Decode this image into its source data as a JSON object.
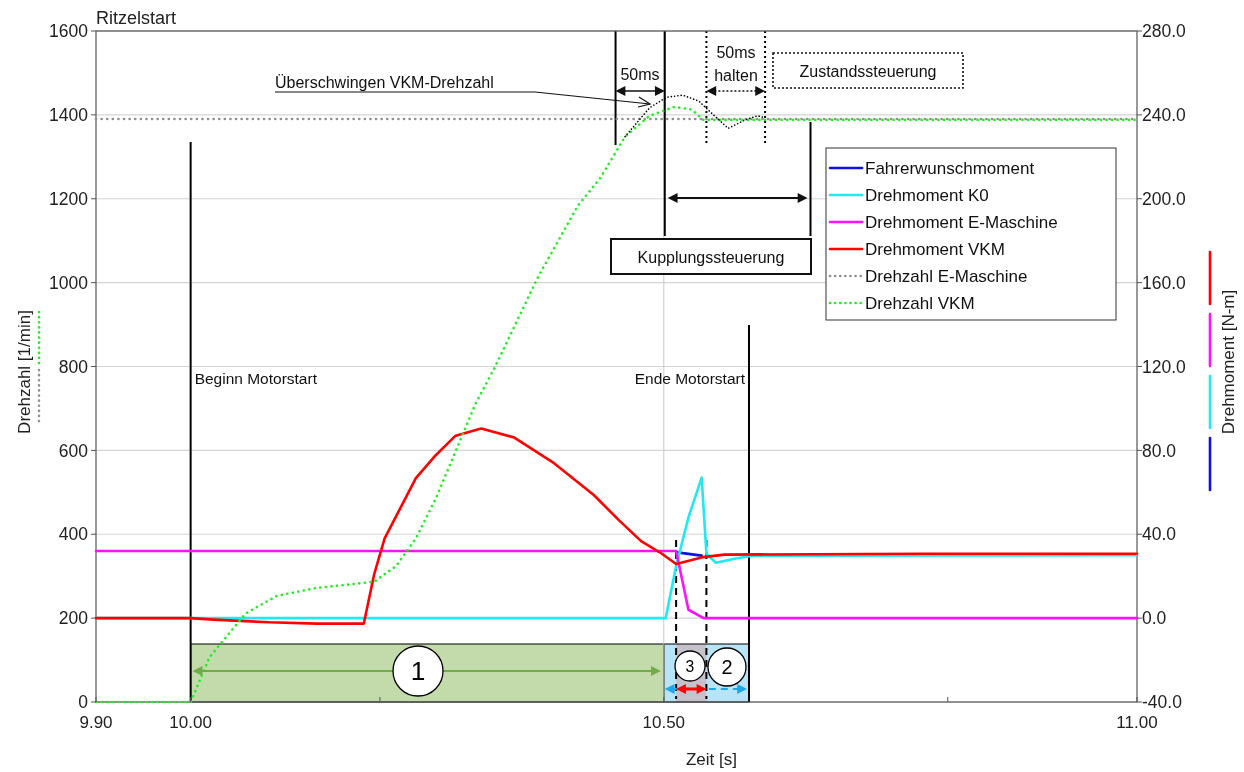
{
  "chart_data": {
    "type": "line",
    "title": "Ritzelstart",
    "xlabel": "Zeit [s]",
    "ylabel": "Drehzahl [1/min]",
    "y2label": "Drehmoment [N-m]",
    "xlim": [
      9.9,
      11.0
    ],
    "xticks": [
      {
        "value": 9.9,
        "label": "9.90"
      },
      {
        "value": 10.0,
        "label": "10.00"
      },
      {
        "value": 10.2,
        "label": null
      },
      {
        "value": 10.5,
        "label": "10.50"
      },
      {
        "value": 10.8,
        "label": null
      },
      {
        "value": 11.0,
        "label": "11.00"
      }
    ],
    "ylim": [
      0,
      1600
    ],
    "yticks": [
      0,
      200,
      400,
      600,
      800,
      1000,
      1200,
      1400,
      1600
    ],
    "y2lim": [
      -40,
      280
    ],
    "y2ticks": [
      {
        "value": -40,
        "label": "-40.0"
      },
      {
        "value": 0,
        "label": "0.0"
      },
      {
        "value": 40,
        "label": "40.0"
      },
      {
        "value": 80,
        "label": "80.0"
      },
      {
        "value": 120,
        "label": "120.0"
      },
      {
        "value": 160,
        "label": "160.0"
      },
      {
        "value": 200,
        "label": "200.0"
      },
      {
        "value": 240,
        "label": "240.0"
      },
      {
        "value": 280,
        "label": "280.0"
      }
    ],
    "grid": "y",
    "legend": "right",
    "marker": "none",
    "series": [
      {
        "name": "Fahrerwunschmoment",
        "color": "#1010e0",
        "axis": "y2",
        "line_style": "solid",
        "x": [
          10.513,
          10.52,
          10.54
        ],
        "values": [
          31.5,
          31,
          29.8
        ]
      },
      {
        "name": "Drehmoment K0",
        "color": "#22e8f0",
        "axis": "y2",
        "line_style": "solid",
        "x": [
          9.9,
          10.502,
          10.513,
          10.526,
          10.54,
          10.545,
          10.555,
          10.576,
          10.594,
          10.638,
          11.0
        ],
        "values": [
          0,
          0,
          24.8,
          48,
          67,
          30.7,
          26.4,
          28.4,
          29.8,
          29.8,
          30
        ]
      },
      {
        "name": "Drehmoment E-Maschine",
        "color": "#ff10ff",
        "axis": "y2",
        "line_style": "solid",
        "x": [
          9.9,
          10.513,
          10.526,
          10.542,
          11.0
        ],
        "values": [
          32,
          32,
          4,
          0,
          0
        ]
      },
      {
        "name": "Drehmoment VKM",
        "color": "#ff0000",
        "axis": "y2",
        "line_style": "solid",
        "x": [
          9.9,
          10.0,
          10.024,
          10.083,
          10.133,
          10.183,
          10.194,
          10.205,
          10.238,
          10.259,
          10.28,
          10.307,
          10.342,
          10.384,
          10.426,
          10.453,
          10.476,
          10.498,
          10.513,
          10.542,
          10.564,
          10.773,
          11.0
        ],
        "values": [
          0,
          0,
          -0.7,
          -2,
          -2.6,
          -2.6,
          21,
          38,
          66.8,
          77.7,
          87,
          90.4,
          86.1,
          73.9,
          58.7,
          46.5,
          36.7,
          30.7,
          25.8,
          29.1,
          30.3,
          30.7,
          30.7
        ]
      },
      {
        "name": "Drehzahl E-Maschine",
        "color": "#909090",
        "axis": "y",
        "line_style": "dotted",
        "x": [
          9.9,
          11.0
        ],
        "values": [
          1390,
          1390
        ]
      },
      {
        "name": "Drehzahl VKM",
        "color": "#22ee22",
        "axis": "y",
        "line_style": "dotted",
        "x": [
          9.9,
          10.0,
          10.02,
          10.058,
          10.091,
          10.133,
          10.175,
          10.194,
          10.217,
          10.238,
          10.259,
          10.28,
          10.301,
          10.321,
          10.367,
          10.409,
          10.433,
          10.459,
          10.485,
          10.511,
          10.529,
          10.542,
          11.0
        ],
        "values": [
          0,
          0,
          107,
          211,
          253,
          272,
          282,
          287,
          324,
          390,
          485,
          598,
          711,
          796,
          1013,
          1183,
          1250,
          1348,
          1398,
          1419,
          1413,
          1388,
          1388
        ]
      },
      {
        "color": "#000000",
        "axis": "y",
        "line_style": "dotted",
        "x": [
          10.459,
          10.485,
          10.503,
          10.52,
          10.537,
          10.551,
          10.568,
          10.586,
          10.599,
          10.607
        ],
        "values": [
          1348,
          1417,
          1442,
          1447,
          1433,
          1403,
          1368,
          1388,
          1398,
          1393
        ]
      }
    ],
    "ref_lines": [
      {
        "axis": "x",
        "value": 10.0,
        "label": "Beginn Motorstart",
        "color": "#000000",
        "line_style": "solid"
      },
      {
        "axis": "x",
        "value": 10.59,
        "label": "Ende Motorstart",
        "color": "#000000",
        "line_style": "solid"
      },
      {
        "axis": "x",
        "value": 10.5,
        "color": "#c8c8c8",
        "line_style": "solid"
      },
      {
        "axis": "x",
        "value": 10.449,
        "color": "#000000",
        "line_style": "solid"
      },
      {
        "axis": "x",
        "value": 10.501,
        "color": "#000000",
        "line_style": "solid"
      },
      {
        "axis": "x",
        "value": 10.545,
        "color": "#000000",
        "line_style": "dotted"
      },
      {
        "axis": "x",
        "value": 10.607,
        "color": "#000000",
        "line_style": "dotted"
      },
      {
        "axis": "x",
        "value": 10.655,
        "color": "#000000",
        "line_style": "solid"
      },
      {
        "axis": "x",
        "value": 10.513,
        "color": "#000000",
        "line_style": "dashed"
      }
    ],
    "bands": [
      {
        "axis": "x",
        "from": 10.0,
        "to": 10.5,
        "label": "1",
        "color": "#c3dbab"
      },
      {
        "axis": "x",
        "from": 10.5,
        "to": 10.59,
        "label": "2",
        "color": "#b8e4f7"
      },
      {
        "axis": "x",
        "from": 10.513,
        "to": 10.545,
        "label": "3",
        "color": "#c6c2cc"
      }
    ],
    "annotations": [
      "Überschwingen VKM-Drehzahl",
      "50ms",
      "50ms halten",
      "Zustandssteuerung",
      "Kupplungssteuerung"
    ]
  }
}
